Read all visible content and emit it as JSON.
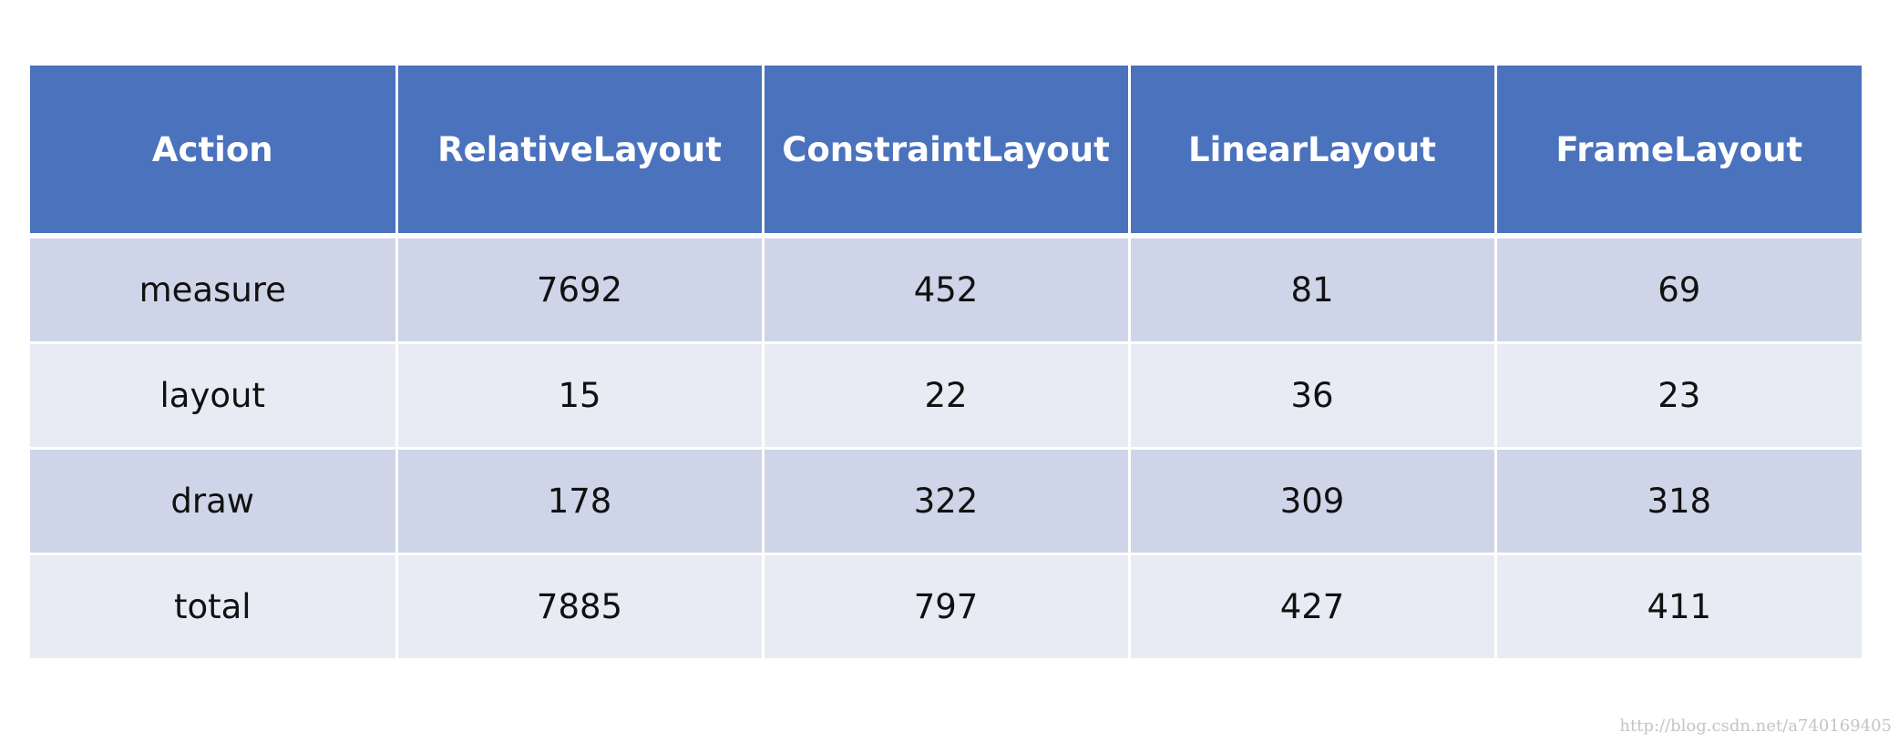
{
  "table": {
    "headers": [
      "Action",
      "RelativeLayout",
      "ConstraintLayout",
      "LinearLayout",
      "FrameLayout"
    ],
    "rows": [
      [
        "measure",
        "7692",
        "452",
        "81",
        "69"
      ],
      [
        "layout",
        "15",
        "22",
        "36",
        "23"
      ],
      [
        "draw",
        "178",
        "322",
        "309",
        "318"
      ],
      [
        "total",
        "7885",
        "797",
        "427",
        "411"
      ]
    ]
  },
  "watermark": "http://blog.csdn.net/a740169405",
  "colors": {
    "header_bg": "#4a72bd",
    "row_odd_bg": "#cfd5e8",
    "row_even_bg": "#e8ebf4"
  }
}
